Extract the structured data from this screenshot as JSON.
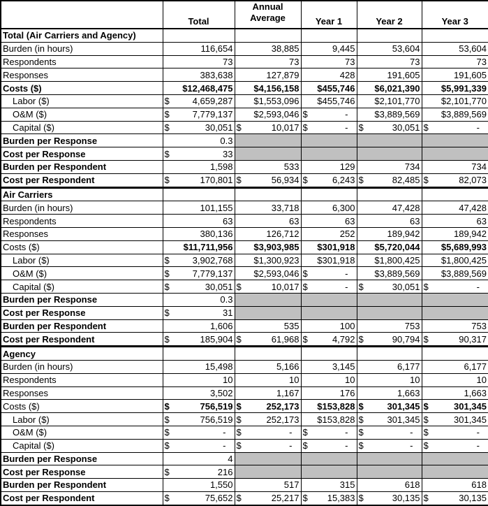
{
  "columns": [
    "",
    "Total",
    "Annual\nAverage",
    "Year 1",
    "Year 2",
    "Year 3"
  ],
  "sections": [
    {
      "title": "Total (Air Carriers and Agency)",
      "rows": [
        {
          "label": "Burden (in hours)",
          "values": [
            "116,654",
            "38,885",
            "9,445",
            "53,604",
            "53,604"
          ]
        },
        {
          "label": "Respondents",
          "values": [
            "73",
            "73",
            "73",
            "73",
            "73"
          ]
        },
        {
          "label": "Responses",
          "values": [
            "383,638",
            "127,879",
            "428",
            "191,605",
            "191,605"
          ]
        },
        {
          "label": "Costs ($)",
          "bold_label": true,
          "bold_values": true,
          "values": [
            "$12,468,475",
            "$4,156,158",
            "$455,746",
            "$6,021,390",
            "$5,991,339"
          ]
        },
        {
          "label": "Labor ($)",
          "indent": true,
          "values": [
            "$ 4,659,287",
            "$1,553,096",
            "$455,746",
            "$2,101,770",
            "$2,101,770"
          ]
        },
        {
          "label": "O&M ($)",
          "indent": true,
          "values": [
            "$ 7,779,137",
            "$2,593,046",
            "$ -",
            "$3,889,569",
            "$3,889,569"
          ]
        },
        {
          "label": "Capital ($)",
          "indent": true,
          "values": [
            "$ 30,051",
            "$ 10,017",
            "$ -",
            "$ 30,051",
            "$ -"
          ]
        },
        {
          "label": "Burden per Response",
          "bold_label": true,
          "gray": true,
          "values": [
            "0.3"
          ]
        },
        {
          "label": "Cost per Response",
          "bold_label": true,
          "gray": true,
          "values": [
            "$ 33"
          ]
        },
        {
          "label": "Burden per Respondent",
          "bold_label": true,
          "values": [
            "1,598",
            "533",
            "129",
            "734",
            "734"
          ]
        },
        {
          "label": "Cost per Respondent",
          "bold_label": true,
          "values": [
            "$ 170,801",
            "$ 56,934",
            "$ 6,243",
            "$ 82,485",
            "$ 82,073"
          ]
        }
      ]
    },
    {
      "title": "Air Carriers",
      "rows": [
        {
          "label": "Burden (in hours)",
          "values": [
            "101,155",
            "33,718",
            "6,300",
            "47,428",
            "47,428"
          ]
        },
        {
          "label": "Respondents",
          "values": [
            "63",
            "63",
            "63",
            "63",
            "63"
          ]
        },
        {
          "label": "Responses",
          "values": [
            "380,136",
            "126,712",
            "252",
            "189,942",
            "189,942"
          ]
        },
        {
          "label": "Costs ($)",
          "bold_values": true,
          "values": [
            "$11,711,956",
            "$3,903,985",
            "$301,918",
            "$5,720,044",
            "$5,689,993"
          ]
        },
        {
          "label": "Labor ($)",
          "indent": true,
          "values": [
            "$ 3,902,768",
            "$1,300,923",
            "$301,918",
            "$1,800,425",
            "$1,800,425"
          ]
        },
        {
          "label": "O&M ($)",
          "indent": true,
          "values": [
            "$ 7,779,137",
            "$2,593,046",
            "$ -",
            "$3,889,569",
            "$3,889,569"
          ]
        },
        {
          "label": "Capital ($)",
          "indent": true,
          "values": [
            "$ 30,051",
            "$ 10,017",
            "$ -",
            "$ 30,051",
            "$ -"
          ]
        },
        {
          "label": "Burden per Response",
          "bold_label": true,
          "gray": true,
          "values": [
            "0.3"
          ]
        },
        {
          "label": "Cost per Response",
          "bold_label": true,
          "gray": true,
          "values": [
            "$ 31"
          ]
        },
        {
          "label": "Burden per Respondent",
          "bold_label": true,
          "values": [
            "1,606",
            "535",
            "100",
            "753",
            "753"
          ]
        },
        {
          "label": "Cost per Respondent",
          "bold_label": true,
          "values": [
            "$ 185,904",
            "$ 61,968",
            "$ 4,792",
            "$ 90,794",
            "$ 90,317"
          ]
        }
      ]
    },
    {
      "title": "Agency",
      "rows": [
        {
          "label": "Burden (in hours)",
          "values": [
            "15,498",
            "5,166",
            "3,145",
            "6,177",
            "6,177"
          ]
        },
        {
          "label": "Respondents",
          "values": [
            "10",
            "10",
            "10",
            "10",
            "10"
          ]
        },
        {
          "label": "Responses",
          "values": [
            "3,502",
            "1,167",
            "176",
            "1,663",
            "1,663"
          ]
        },
        {
          "label": "Costs ($)",
          "bold_values": true,
          "values": [
            "$ 756,519",
            "$ 252,173",
            "$153,828",
            "$ 301,345",
            "$ 301,345"
          ]
        },
        {
          "label": "Labor ($)",
          "indent": true,
          "values": [
            "$ 756,519",
            "$ 252,173",
            "$153,828",
            "$ 301,345",
            "$ 301,345"
          ]
        },
        {
          "label": "O&M ($)",
          "indent": true,
          "values": [
            "$ -",
            "$ -",
            "$ -",
            "$ -",
            "$ -"
          ]
        },
        {
          "label": "Capital ($)",
          "indent": true,
          "values": [
            "$ -",
            "$ -",
            "$ -",
            "$ -",
            "$ -"
          ]
        },
        {
          "label": "Burden per Response",
          "bold_label": true,
          "gray": true,
          "values": [
            "4"
          ]
        },
        {
          "label": "Cost per Response",
          "bold_label": true,
          "gray": true,
          "values": [
            "$ 216"
          ]
        },
        {
          "label": "Burden per Respondent",
          "bold_label": true,
          "values": [
            "1,550",
            "517",
            "315",
            "618",
            "618"
          ]
        },
        {
          "label": "Cost per Respondent",
          "bold_label": true,
          "values": [
            "$ 75,652",
            "$ 25,217",
            "$ 15,383",
            "$ 30,135",
            "$ 30,135"
          ]
        }
      ]
    }
  ]
}
